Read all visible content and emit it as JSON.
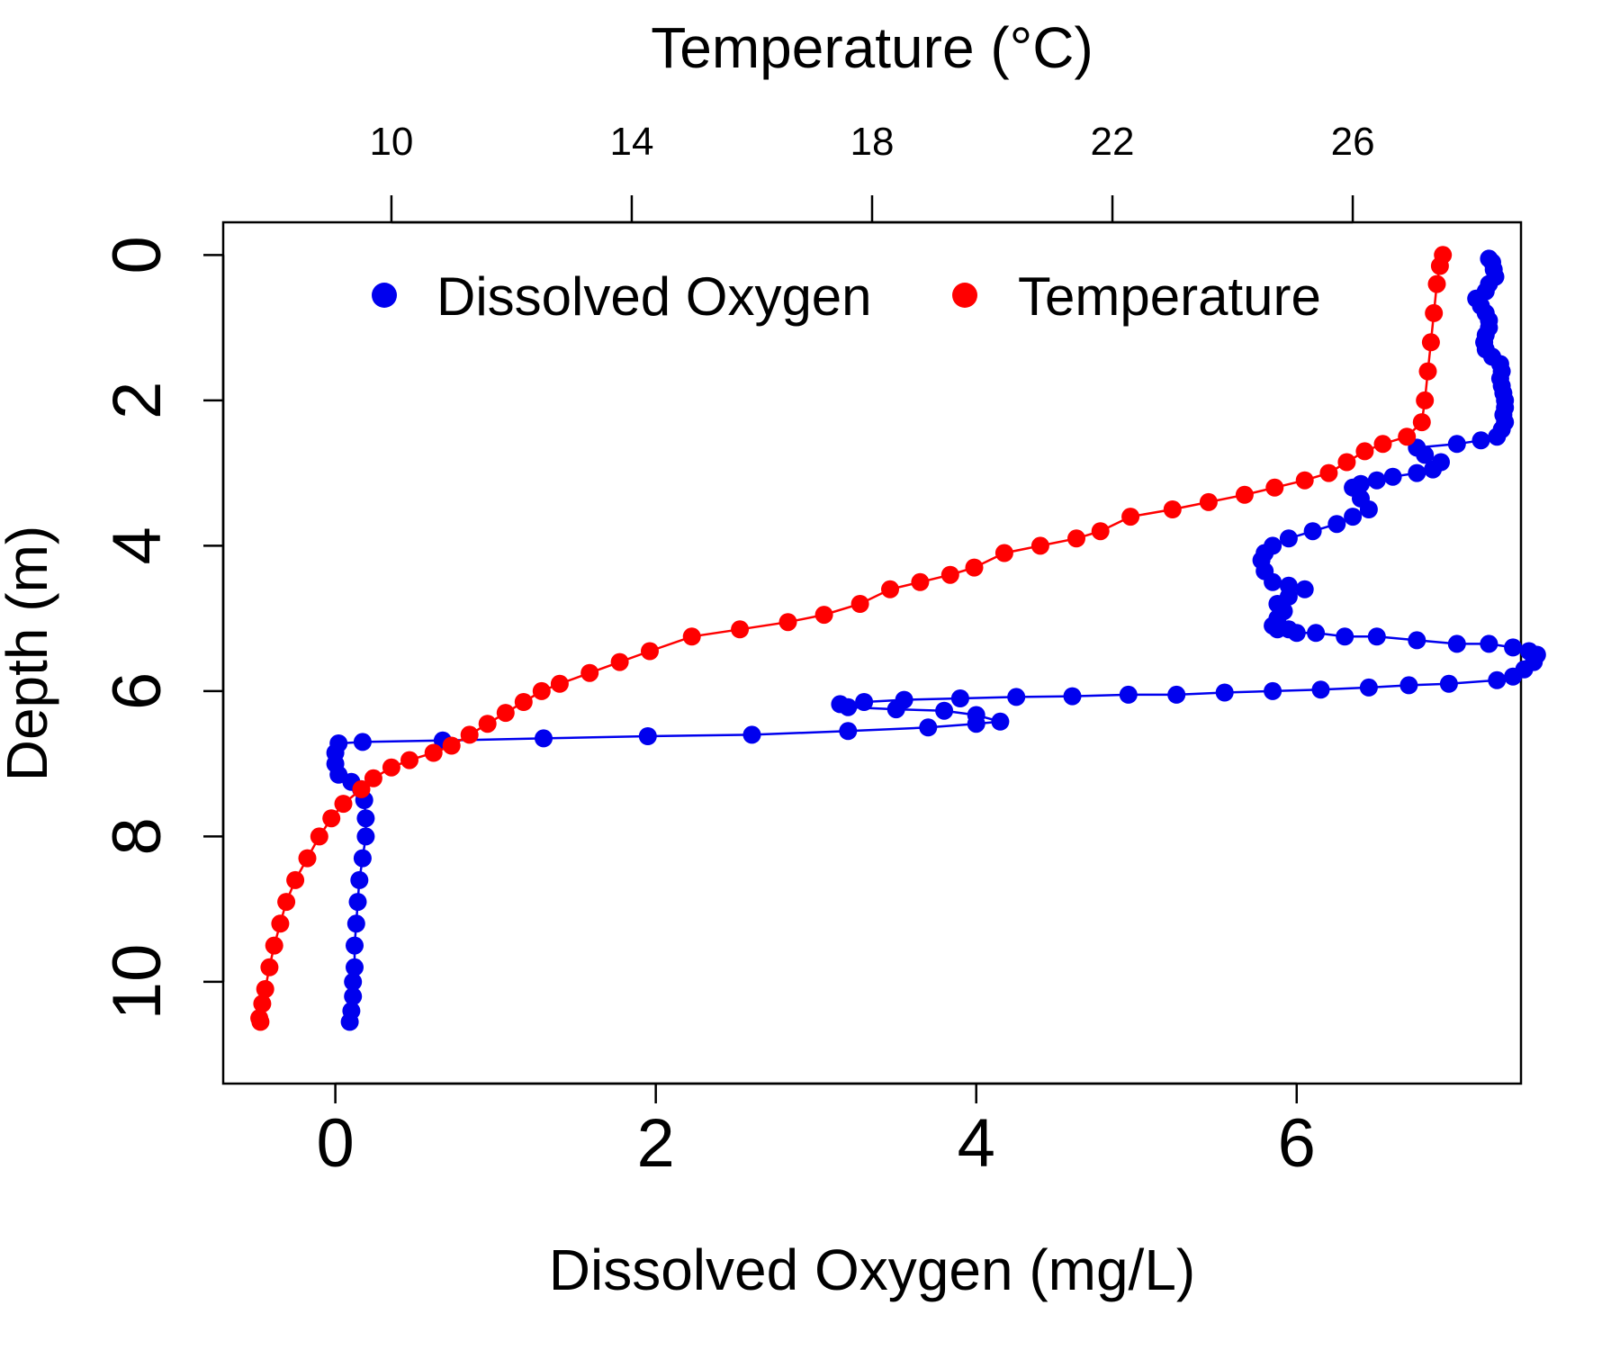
{
  "chart_data": {
    "type": "scatter",
    "title": "",
    "bottom_axis": {
      "label": "Dissolved Oxygen (mg/L)",
      "range": [
        -0.7,
        7.4
      ],
      "ticks": [
        0,
        2,
        4,
        6
      ],
      "tick_labels": [
        "0",
        "2",
        "4",
        "6"
      ]
    },
    "top_axis": {
      "label": "Temperature (°C)",
      "range": [
        7.2,
        28.8
      ],
      "ticks": [
        10,
        14,
        18,
        22,
        26
      ],
      "tick_labels": [
        "10",
        "14",
        "18",
        "22",
        "26"
      ]
    },
    "left_axis": {
      "label": "Depth (m)",
      "range": [
        -0.45,
        11.4
      ],
      "reversed": true,
      "ticks": [
        0,
        2,
        4,
        6,
        8,
        10
      ],
      "tick_labels": [
        "0",
        "2",
        "4",
        "6",
        "8",
        "10"
      ]
    },
    "grid": false,
    "legend": {
      "position": "top",
      "entries": [
        {
          "label": "Dissolved Oxygen",
          "color": "#0000ee"
        },
        {
          "label": "Temperature",
          "color": "#ff0000"
        }
      ]
    },
    "series": [
      {
        "name": "Dissolved Oxygen",
        "axis": "bottom",
        "color": "#0000ee",
        "points": [
          [
            7.2,
            0.05
          ],
          [
            7.22,
            0.1
          ],
          [
            7.23,
            0.2
          ],
          [
            7.24,
            0.3
          ],
          [
            7.2,
            0.4
          ],
          [
            7.18,
            0.5
          ],
          [
            7.12,
            0.6
          ],
          [
            7.15,
            0.7
          ],
          [
            7.18,
            0.8
          ],
          [
            7.2,
            0.9
          ],
          [
            7.2,
            1.0
          ],
          [
            7.18,
            1.1
          ],
          [
            7.17,
            1.2
          ],
          [
            7.18,
            1.3
          ],
          [
            7.22,
            1.4
          ],
          [
            7.27,
            1.5
          ],
          [
            7.28,
            1.6
          ],
          [
            7.27,
            1.7
          ],
          [
            7.28,
            1.8
          ],
          [
            7.29,
            1.9
          ],
          [
            7.3,
            2.0
          ],
          [
            7.3,
            2.1
          ],
          [
            7.29,
            2.2
          ],
          [
            7.3,
            2.3
          ],
          [
            7.28,
            2.4
          ],
          [
            7.25,
            2.5
          ],
          [
            7.15,
            2.55
          ],
          [
            7.0,
            2.6
          ],
          [
            6.75,
            2.65
          ],
          [
            6.8,
            2.75
          ],
          [
            6.9,
            2.85
          ],
          [
            6.85,
            2.95
          ],
          [
            6.75,
            3.0
          ],
          [
            6.6,
            3.05
          ],
          [
            6.5,
            3.1
          ],
          [
            6.4,
            3.15
          ],
          [
            6.35,
            3.2
          ],
          [
            6.4,
            3.35
          ],
          [
            6.45,
            3.5
          ],
          [
            6.35,
            3.6
          ],
          [
            6.25,
            3.7
          ],
          [
            6.1,
            3.8
          ],
          [
            5.95,
            3.9
          ],
          [
            5.85,
            4.0
          ],
          [
            5.8,
            4.1
          ],
          [
            5.78,
            4.2
          ],
          [
            5.8,
            4.35
          ],
          [
            5.85,
            4.5
          ],
          [
            5.95,
            4.55
          ],
          [
            6.05,
            4.6
          ],
          [
            5.95,
            4.7
          ],
          [
            5.88,
            4.8
          ],
          [
            5.92,
            4.9
          ],
          [
            5.88,
            5.0
          ],
          [
            5.85,
            5.1
          ],
          [
            5.88,
            5.15
          ],
          [
            5.95,
            5.15
          ],
          [
            6.0,
            5.2
          ],
          [
            6.12,
            5.2
          ],
          [
            6.3,
            5.25
          ],
          [
            6.5,
            5.25
          ],
          [
            6.75,
            5.3
          ],
          [
            7.0,
            5.35
          ],
          [
            7.2,
            5.35
          ],
          [
            7.35,
            5.4
          ],
          [
            7.45,
            5.45
          ],
          [
            7.5,
            5.5
          ],
          [
            7.48,
            5.6
          ],
          [
            7.42,
            5.7
          ],
          [
            7.35,
            5.8
          ],
          [
            7.25,
            5.85
          ],
          [
            6.95,
            5.9
          ],
          [
            6.7,
            5.92
          ],
          [
            6.45,
            5.95
          ],
          [
            6.15,
            5.98
          ],
          [
            5.85,
            6.0
          ],
          [
            5.55,
            6.02
          ],
          [
            5.25,
            6.05
          ],
          [
            4.95,
            6.05
          ],
          [
            4.6,
            6.07
          ],
          [
            4.25,
            6.08
          ],
          [
            3.9,
            6.1
          ],
          [
            3.55,
            6.12
          ],
          [
            3.3,
            6.15
          ],
          [
            3.15,
            6.18
          ],
          [
            3.2,
            6.22
          ],
          [
            3.5,
            6.25
          ],
          [
            3.8,
            6.27
          ],
          [
            4.0,
            6.33
          ],
          [
            4.15,
            6.42
          ],
          [
            4.0,
            6.45
          ],
          [
            3.7,
            6.5
          ],
          [
            3.2,
            6.55
          ],
          [
            2.6,
            6.6
          ],
          [
            1.95,
            6.62
          ],
          [
            1.3,
            6.65
          ],
          [
            0.67,
            6.68
          ],
          [
            0.17,
            6.7
          ],
          [
            0.02,
            6.72
          ],
          [
            0.0,
            6.85
          ],
          [
            0.0,
            7.0
          ],
          [
            0.02,
            7.15
          ],
          [
            0.1,
            7.25
          ],
          [
            0.16,
            7.35
          ],
          [
            0.18,
            7.5
          ],
          [
            0.19,
            7.75
          ],
          [
            0.19,
            8.0
          ],
          [
            0.17,
            8.3
          ],
          [
            0.15,
            8.6
          ],
          [
            0.14,
            8.9
          ],
          [
            0.13,
            9.2
          ],
          [
            0.12,
            9.5
          ],
          [
            0.12,
            9.8
          ],
          [
            0.11,
            10.0
          ],
          [
            0.11,
            10.2
          ],
          [
            0.1,
            10.4
          ],
          [
            0.09,
            10.55
          ]
        ]
      },
      {
        "name": "Temperature",
        "axis": "top",
        "color": "#ff0000",
        "points": [
          [
            27.5,
            0.0
          ],
          [
            27.45,
            0.15
          ],
          [
            27.4,
            0.4
          ],
          [
            27.35,
            0.8
          ],
          [
            27.3,
            1.2
          ],
          [
            27.25,
            1.6
          ],
          [
            27.2,
            2.0
          ],
          [
            27.15,
            2.3
          ],
          [
            26.9,
            2.5
          ],
          [
            26.5,
            2.6
          ],
          [
            26.2,
            2.7
          ],
          [
            25.9,
            2.85
          ],
          [
            25.6,
            3.0
          ],
          [
            25.2,
            3.1
          ],
          [
            24.7,
            3.2
          ],
          [
            24.2,
            3.3
          ],
          [
            23.6,
            3.4
          ],
          [
            23.0,
            3.5
          ],
          [
            22.3,
            3.6
          ],
          [
            21.8,
            3.8
          ],
          [
            21.4,
            3.9
          ],
          [
            20.8,
            4.0
          ],
          [
            20.2,
            4.1
          ],
          [
            19.7,
            4.3
          ],
          [
            19.3,
            4.4
          ],
          [
            18.8,
            4.5
          ],
          [
            18.3,
            4.6
          ],
          [
            17.8,
            4.8
          ],
          [
            17.2,
            4.95
          ],
          [
            16.6,
            5.05
          ],
          [
            15.8,
            5.15
          ],
          [
            15.0,
            5.25
          ],
          [
            14.3,
            5.45
          ],
          [
            13.8,
            5.6
          ],
          [
            13.3,
            5.75
          ],
          [
            12.8,
            5.9
          ],
          [
            12.5,
            6.0
          ],
          [
            12.2,
            6.15
          ],
          [
            11.9,
            6.3
          ],
          [
            11.6,
            6.45
          ],
          [
            11.3,
            6.6
          ],
          [
            11.0,
            6.75
          ],
          [
            10.7,
            6.85
          ],
          [
            10.3,
            6.95
          ],
          [
            10.0,
            7.05
          ],
          [
            9.7,
            7.2
          ],
          [
            9.5,
            7.35
          ],
          [
            9.2,
            7.55
          ],
          [
            9.0,
            7.75
          ],
          [
            8.8,
            8.0
          ],
          [
            8.6,
            8.3
          ],
          [
            8.4,
            8.6
          ],
          [
            8.25,
            8.9
          ],
          [
            8.15,
            9.2
          ],
          [
            8.05,
            9.5
          ],
          [
            7.97,
            9.8
          ],
          [
            7.9,
            10.1
          ],
          [
            7.85,
            10.3
          ],
          [
            7.8,
            10.5
          ],
          [
            7.82,
            10.55
          ]
        ]
      }
    ]
  }
}
